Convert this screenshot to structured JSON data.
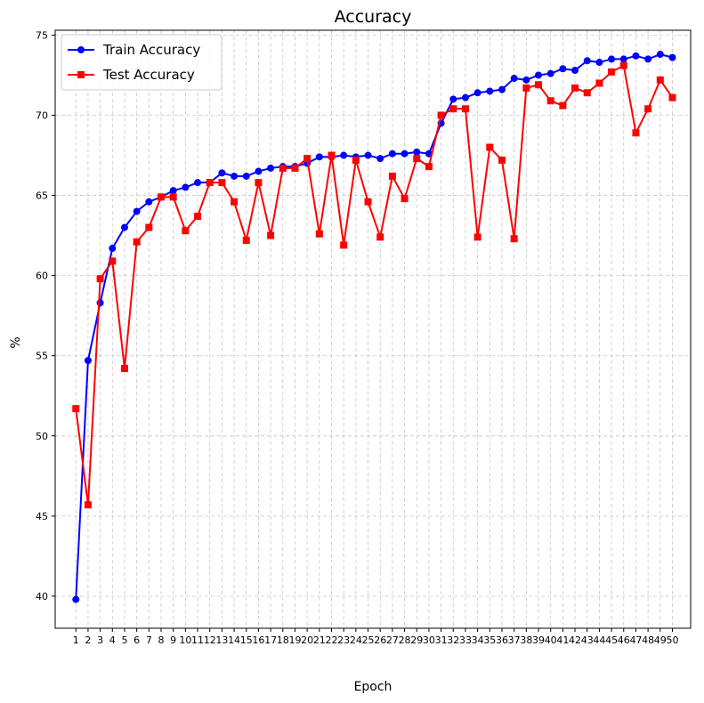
{
  "chart_data": {
    "type": "line",
    "title": "Accuracy",
    "xlabel": "Epoch",
    "ylabel": "%",
    "x": [
      1,
      2,
      3,
      4,
      5,
      6,
      7,
      8,
      9,
      10,
      11,
      12,
      13,
      14,
      15,
      16,
      17,
      18,
      19,
      20,
      21,
      22,
      23,
      24,
      25,
      26,
      27,
      28,
      29,
      30,
      31,
      32,
      33,
      34,
      35,
      36,
      37,
      38,
      39,
      40,
      41,
      42,
      43,
      44,
      45,
      46,
      47,
      48,
      49,
      50
    ],
    "xlim": [
      -0.7,
      51.5
    ],
    "ylim": [
      38.0,
      75.3
    ],
    "yticks": [
      40,
      45,
      50,
      55,
      60,
      65,
      70,
      75
    ],
    "grid": true,
    "legend_position": "top-left",
    "series": [
      {
        "name": "Train Accuracy",
        "color": "#0000ff",
        "marker": "circle",
        "values": [
          39.8,
          54.7,
          58.3,
          61.7,
          63.0,
          64.0,
          64.6,
          64.9,
          65.3,
          65.5,
          65.8,
          65.8,
          66.4,
          66.2,
          66.2,
          66.5,
          66.7,
          66.8,
          66.8,
          67.0,
          67.4,
          67.4,
          67.5,
          67.4,
          67.5,
          67.3,
          67.6,
          67.6,
          67.7,
          67.6,
          69.5,
          71.0,
          71.1,
          71.4,
          71.5,
          71.6,
          72.3,
          72.2,
          72.5,
          72.6,
          72.9,
          72.8,
          73.4,
          73.3,
          73.5,
          73.5,
          73.7,
          73.5,
          73.8,
          73.6
        ]
      },
      {
        "name": "Test Accuracy",
        "color": "#ff0000",
        "marker": "square",
        "values": [
          51.7,
          45.7,
          59.8,
          60.9,
          54.2,
          62.1,
          63.0,
          64.9,
          64.9,
          62.8,
          63.7,
          65.8,
          65.8,
          64.6,
          62.2,
          65.8,
          62.5,
          66.7,
          66.7,
          67.3,
          62.6,
          67.5,
          61.9,
          67.2,
          64.6,
          62.4,
          66.2,
          64.8,
          67.3,
          66.8,
          70.0,
          70.4,
          70.4,
          62.4,
          68.0,
          67.2,
          62.3,
          71.7,
          71.9,
          70.9,
          70.6,
          71.7,
          71.4,
          72.0,
          72.7,
          73.1,
          68.9,
          70.4,
          72.2,
          71.1
        ]
      }
    ]
  }
}
